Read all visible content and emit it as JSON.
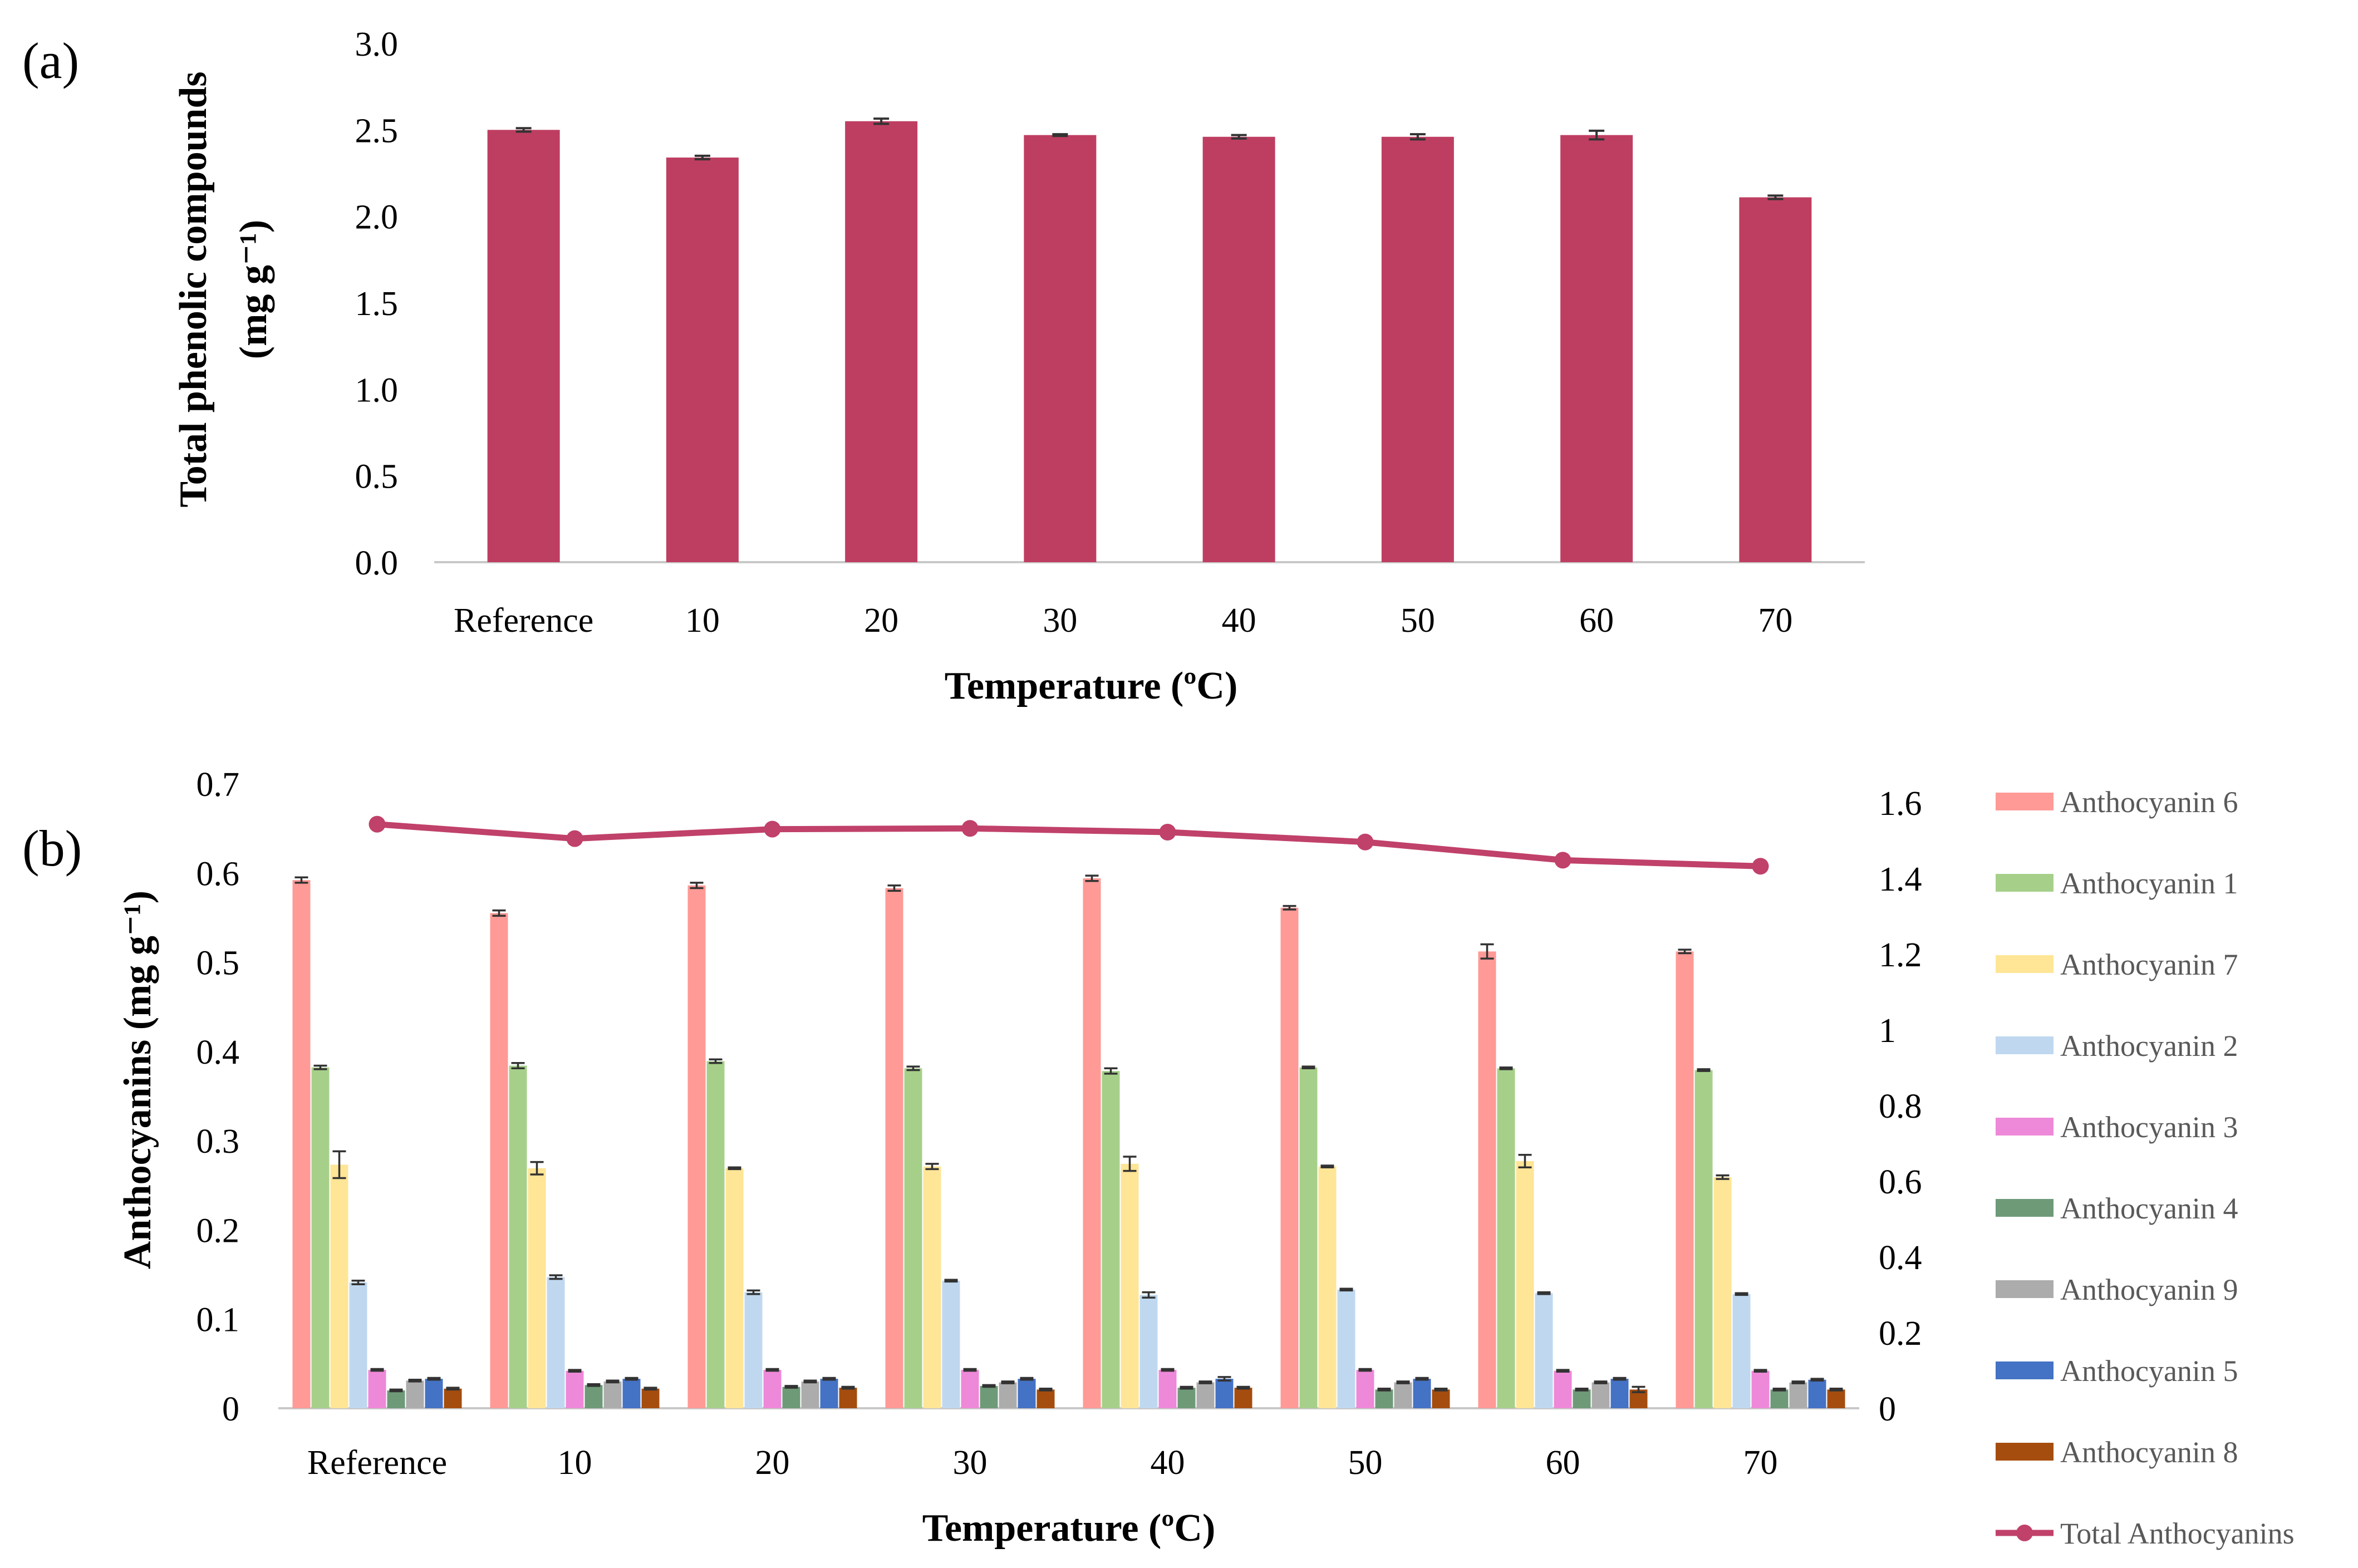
{
  "panels": {
    "a": {
      "label": "(a)"
    },
    "b": {
      "label": "(b)"
    }
  },
  "colors": {
    "total_phenolic": "#be3e61",
    "total_anthocyanins_line": "#c0416a",
    "axis": "#c8c8c8",
    "error_bar": "#333333",
    "anthocyanins": {
      "Anthocyanin 6": "#ff9a96",
      "Anthocyanin 1": "#a6d08a",
      "Anthocyanin 7": "#ffe596",
      "Anthocyanin 2": "#bfd8f0",
      "Anthocyanin 3": "#ee88d8",
      "Anthocyanin 4": "#6e9a78",
      "Anthocyanin 9": "#acacac",
      "Anthocyanin 5": "#4472c4",
      "Anthocyanin 8": "#a54d0e"
    }
  },
  "chart_data": [
    {
      "type": "bar",
      "title": "",
      "xlabel": "Temperature (ºC)",
      "ylabel_line1": "Total phenolic compounds",
      "ylabel_line2": "(mg g⁻¹)",
      "categories": [
        "Reference",
        "10",
        "20",
        "30",
        "40",
        "50",
        "60",
        "70"
      ],
      "values": [
        2.5,
        2.34,
        2.55,
        2.47,
        2.46,
        2.46,
        2.47,
        2.11
      ],
      "errors": [
        0.01,
        0.01,
        0.015,
        0.005,
        0.01,
        0.015,
        0.025,
        0.01
      ],
      "ylim": [
        0,
        3.0
      ],
      "yticks": [
        "0.0",
        "0.5",
        "1.0",
        "1.5",
        "2.0",
        "2.5",
        "3.0"
      ],
      "grid": false
    },
    {
      "type": "bar",
      "title": "",
      "xlabel": "Temperature (ºC)",
      "ylabel": "Anthocyanins (mg g⁻¹)",
      "categories": [
        "Reference",
        "10",
        "20",
        "30",
        "40",
        "50",
        "60",
        "70"
      ],
      "ylim": [
        0,
        0.7
      ],
      "yticks": [
        "0",
        "0.1",
        "0.2",
        "0.3",
        "0.4",
        "0.5",
        "0.6",
        "0.7"
      ],
      "y2lim": [
        0,
        1.6
      ],
      "y2ticks": [
        "0",
        "0.2",
        "0.4",
        "0.6",
        "0.8",
        "1",
        "1.2",
        "1.4",
        "1.6"
      ],
      "legend_position": "right",
      "grid": false,
      "series": [
        {
          "name": "Anthocyanin 6",
          "values": [
            0.592,
            0.555,
            0.586,
            0.583,
            0.594,
            0.561,
            0.512,
            0.512
          ],
          "errors": [
            0.003,
            0.003,
            0.003,
            0.003,
            0.003,
            0.002,
            0.008,
            0.002
          ]
        },
        {
          "name": "Anthocyanin 1",
          "values": [
            0.382,
            0.384,
            0.389,
            0.381,
            0.378,
            0.382,
            0.381,
            0.379
          ],
          "errors": [
            0.002,
            0.003,
            0.002,
            0.002,
            0.003,
            0.001,
            0.001,
            0.001
          ]
        },
        {
          "name": "Anthocyanin 7",
          "values": [
            0.273,
            0.269,
            0.269,
            0.271,
            0.274,
            0.271,
            0.277,
            0.259
          ],
          "errors": [
            0.015,
            0.007,
            0.001,
            0.003,
            0.008,
            0.001,
            0.007,
            0.002
          ]
        },
        {
          "name": "Anthocyanin 2",
          "values": [
            0.141,
            0.147,
            0.13,
            0.143,
            0.127,
            0.133,
            0.129,
            0.128
          ],
          "errors": [
            0.002,
            0.002,
            0.002,
            0.001,
            0.003,
            0.001,
            0.001,
            0.001
          ]
        },
        {
          "name": "Anthocyanin 3",
          "values": [
            0.043,
            0.042,
            0.043,
            0.043,
            0.043,
            0.043,
            0.042,
            0.042
          ],
          "errors": [
            0.001,
            0.001,
            0.001,
            0.001,
            0.001,
            0.001,
            0.001,
            0.001
          ]
        },
        {
          "name": "Anthocyanin 4",
          "values": [
            0.02,
            0.026,
            0.024,
            0.025,
            0.023,
            0.021,
            0.021,
            0.021
          ],
          "errors": [
            0.001,
            0.001,
            0.001,
            0.001,
            0.001,
            0.001,
            0.001,
            0.001
          ]
        },
        {
          "name": "Anthocyanin 9",
          "values": [
            0.031,
            0.03,
            0.03,
            0.029,
            0.029,
            0.029,
            0.029,
            0.029
          ],
          "errors": [
            0.001,
            0.001,
            0.001,
            0.001,
            0.001,
            0.001,
            0.001,
            0.001
          ]
        },
        {
          "name": "Anthocyanin 5",
          "values": [
            0.033,
            0.033,
            0.033,
            0.033,
            0.033,
            0.033,
            0.033,
            0.032
          ],
          "errors": [
            0.001,
            0.001,
            0.001,
            0.001,
            0.002,
            0.001,
            0.001,
            0.001
          ]
        },
        {
          "name": "Anthocyanin 8",
          "values": [
            0.022,
            0.022,
            0.023,
            0.021,
            0.023,
            0.021,
            0.021,
            0.021
          ],
          "errors": [
            0.001,
            0.001,
            0.001,
            0.001,
            0.001,
            0.001,
            0.003,
            0.001
          ]
        }
      ],
      "line_series": {
        "name": "Total Anthocyanins",
        "axis": "secondary",
        "values": [
          1.543,
          1.505,
          1.53,
          1.532,
          1.522,
          1.496,
          1.448,
          1.432
        ]
      }
    }
  ]
}
